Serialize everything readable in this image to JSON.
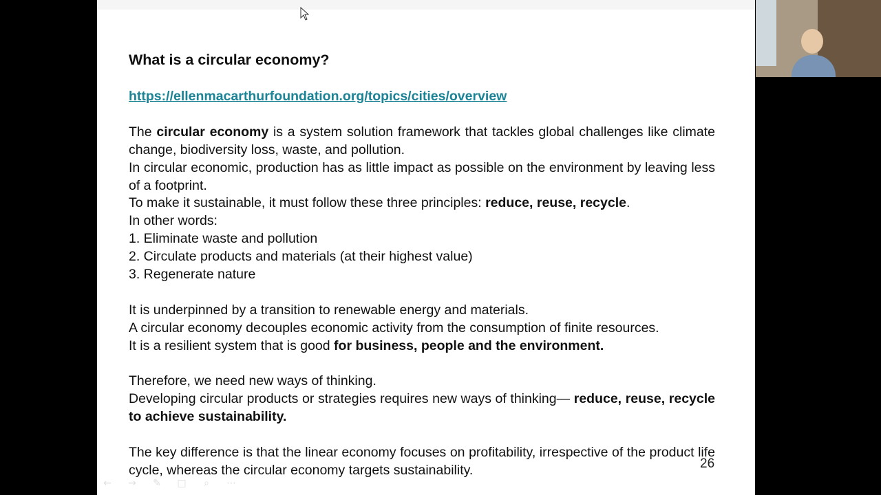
{
  "slide": {
    "title": "What is a circular economy?",
    "link": "https://ellenmacarthurfoundation.org/topics/cities/overview",
    "p1": {
      "a": "The ",
      "b": "circular economy",
      "c": " is a system solution framework that tackles global challenges like climate change, biodiversity loss, waste, and pollution."
    },
    "p2": "In circular economic, production has as little impact as possible on the environment by leaving less of a footprint.",
    "p3": {
      "a": "To make it sustainable, it must follow these three principles: ",
      "b": "reduce, reuse, recycle",
      "c": "."
    },
    "p4": "In other words:",
    "list": [
      "1. Eliminate waste and pollution",
      "2. Circulate products and materials (at their highest value)",
      "3. Regenerate nature"
    ],
    "p5": "It is underpinned by a transition to renewable energy and materials.",
    "p6": "A circular economy decouples economic activity from the consumption of finite resources.",
    "p7": {
      "a": "It is a resilient system that is good ",
      "b": "for business, people and the environment."
    },
    "p8": "Therefore, we need new ways of thinking.",
    "p9": {
      "a": "Developing circular products or strategies requires new ways of thinking— ",
      "b": "reduce, reuse, recycle to achieve sustainability."
    },
    "p10": "The key difference is that the linear economy focuses on profitability, irrespective of the product life cycle, whereas the circular economy targets sustainability.",
    "page_number": "26"
  },
  "toolbar": {
    "icons": [
      "←",
      "→",
      "✎",
      "□",
      "⌕",
      "⋯"
    ]
  },
  "colors": {
    "link": "#1a8396",
    "background": "#000000",
    "slide": "#ffffff"
  }
}
